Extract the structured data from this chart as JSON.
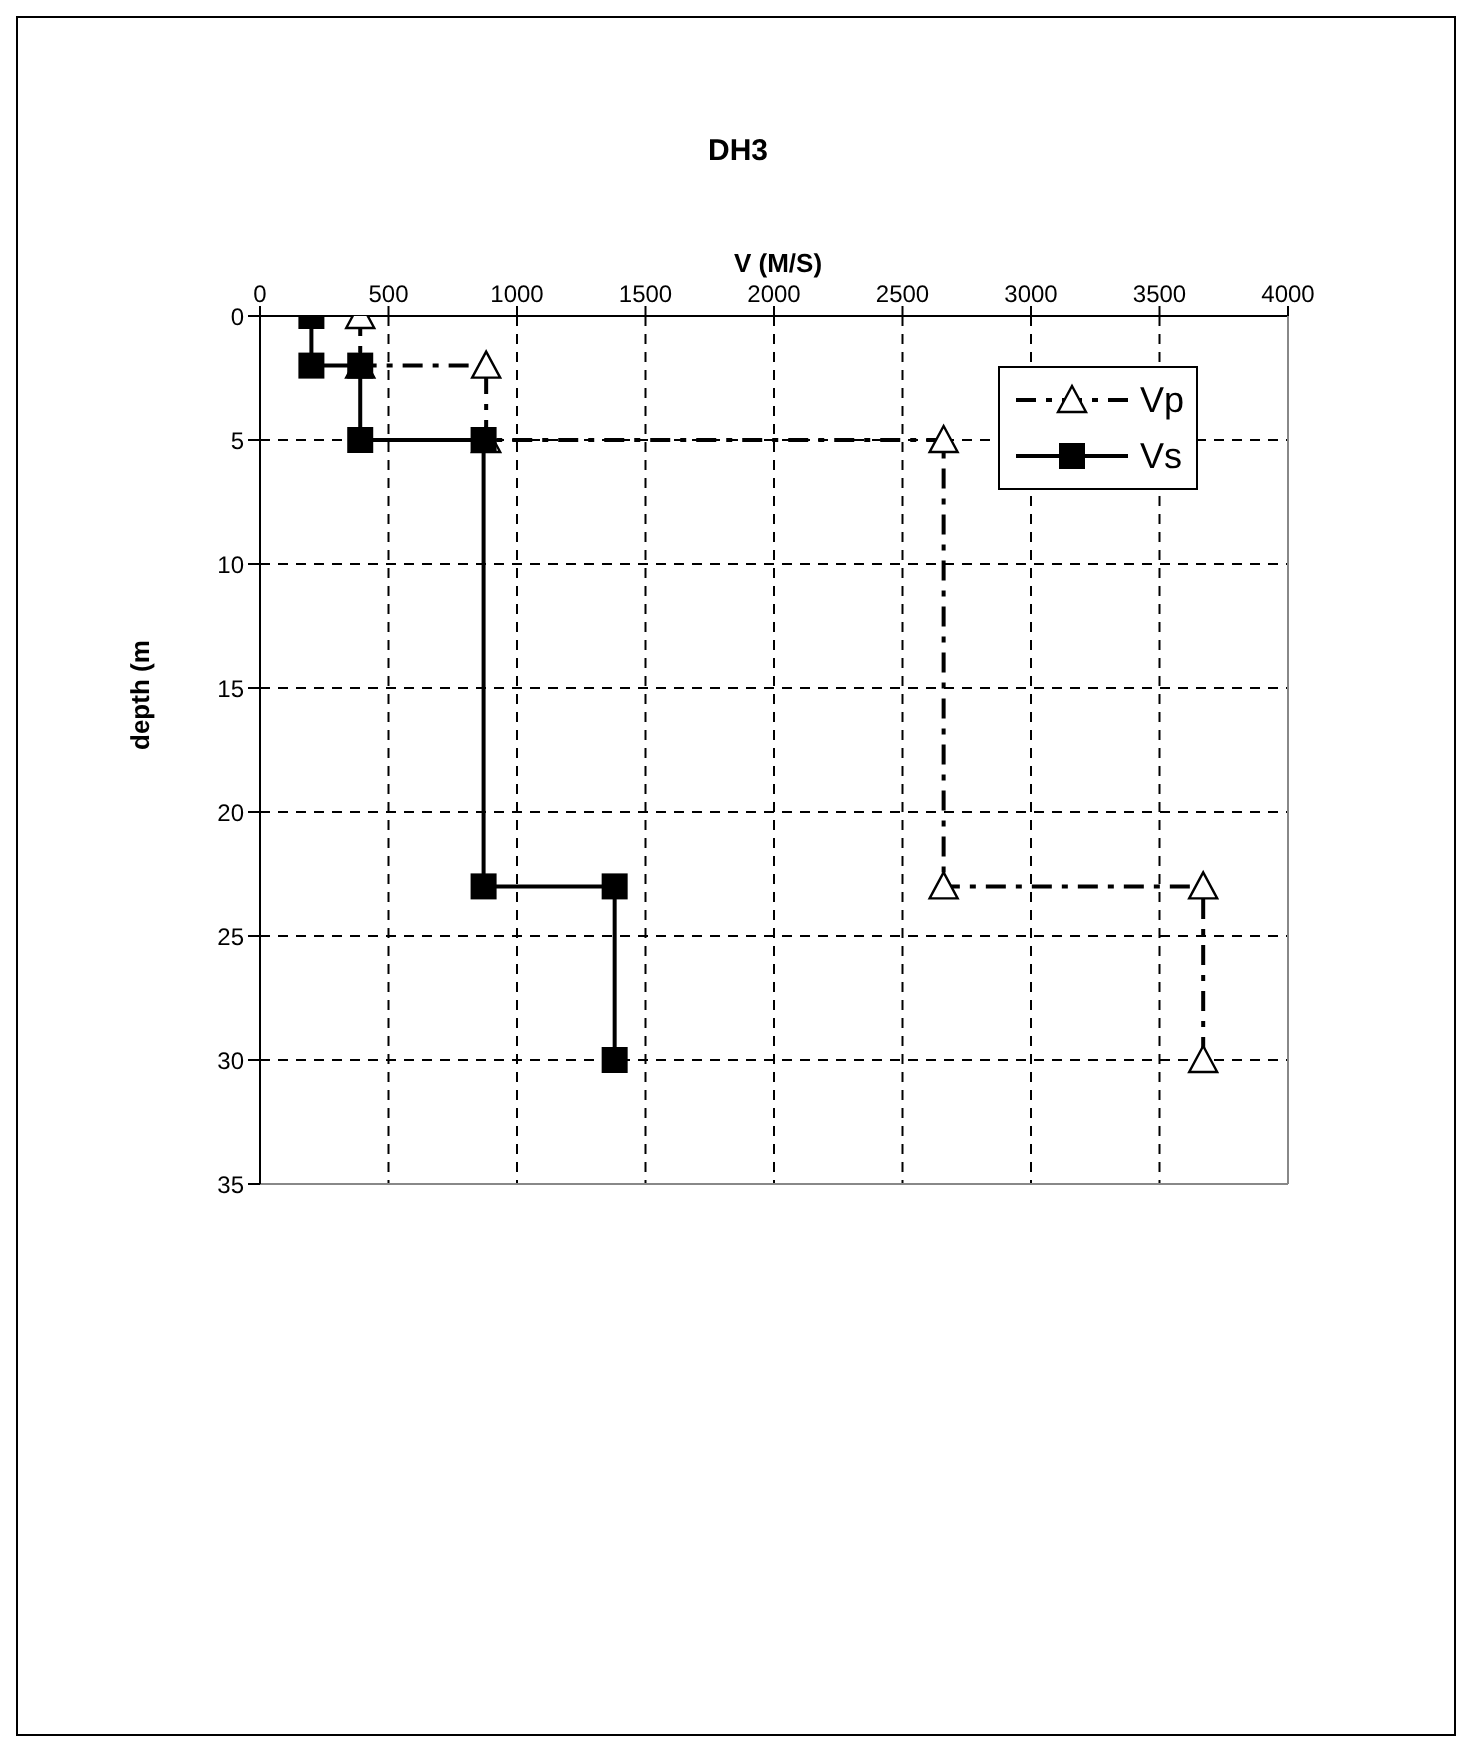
{
  "chart_data": {
    "type": "line",
    "title": "DH3",
    "xlabel": "V (M/S)",
    "ylabel": "depth (m",
    "xlim": [
      0,
      4000
    ],
    "xticks": [
      0,
      500,
      1000,
      1500,
      2000,
      2500,
      3000,
      3500,
      4000
    ],
    "ylim": [
      35,
      0
    ],
    "yticks": [
      0,
      5,
      10,
      15,
      20,
      25,
      30,
      35
    ],
    "grid": true,
    "legend": "top right",
    "series": [
      {
        "name": "Vp",
        "color": "#000000",
        "marker": "triangle",
        "line_style": "dashed",
        "x": [
          390,
          390,
          880,
          880,
          2660,
          2660,
          3670,
          3670
        ],
        "values": [
          0,
          2,
          2,
          5,
          5,
          23,
          23,
          30
        ]
      },
      {
        "name": "Vs",
        "color": "#000000",
        "marker": "square",
        "line_style": "solid",
        "x": [
          200,
          200,
          390,
          390,
          870,
          870,
          1380,
          1380
        ],
        "values": [
          0,
          2,
          2,
          5,
          5,
          23,
          23,
          30
        ]
      }
    ]
  }
}
